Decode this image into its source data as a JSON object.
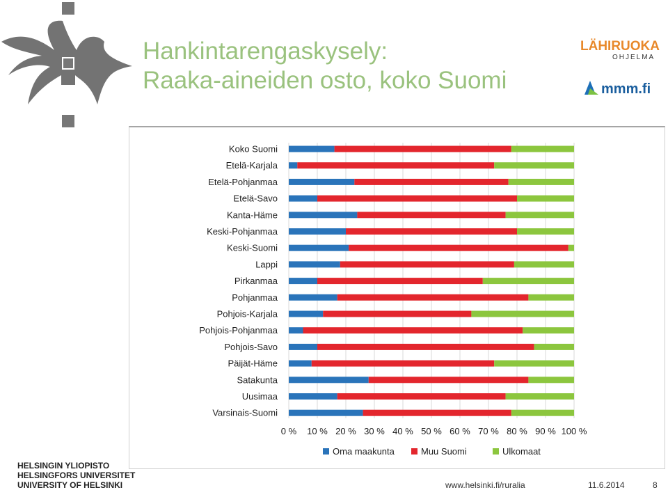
{
  "header": {
    "title_line1": "Hankintarengaskysely:",
    "title_line2": "Raaka-aineiden osto, koko Suomi"
  },
  "logos": {
    "lahiruoka_main": "LÄHIRUOKA",
    "lahiruoka_sub": "OHJELMA",
    "mmm": "mmm.fi",
    "university_line1": "HELSINGIN YLIOPISTO",
    "university_line2": "HELSINGFORS UNIVERSITET",
    "university_line3": "UNIVERSITY OF HELSINKI"
  },
  "footer": {
    "url": "www.helsinki.fi/ruralia",
    "date": "11.6.2014",
    "page": "8"
  },
  "colors": {
    "title": "#9ac27e",
    "oma": "#2a74ba",
    "muu": "#e3262d",
    "ulko": "#8cc63e"
  },
  "chart_data": {
    "type": "bar",
    "orientation": "horizontal",
    "stacked": "percent",
    "categories": [
      "Koko Suomi",
      "Etelä-Karjala",
      "Etelä-Pohjanmaa",
      "Etelä-Savo",
      "Kanta-Häme",
      "Keski-Pohjanmaa",
      "Keski-Suomi",
      "Lappi",
      "Pirkanmaa",
      "Pohjanmaa",
      "Pohjois-Karjala",
      "Pohjois-Pohjanmaa",
      "Pohjois-Savo",
      "Päijät-Häme",
      "Satakunta",
      "Uusimaa",
      "Varsinais-Suomi"
    ],
    "series": [
      {
        "name": "Oma maakunta",
        "color": "#2a74ba",
        "values": [
          16,
          3,
          23,
          10,
          24,
          20,
          21,
          18,
          10,
          17,
          12,
          5,
          10,
          8,
          28,
          17,
          26
        ]
      },
      {
        "name": "Muu Suomi",
        "color": "#e3262d",
        "values": [
          62,
          69,
          54,
          70,
          52,
          60,
          77,
          61,
          58,
          67,
          52,
          77,
          76,
          64,
          56,
          59,
          52
        ]
      },
      {
        "name": "Ulkomaat",
        "color": "#8cc63e",
        "values": [
          22,
          28,
          23,
          20,
          24,
          20,
          2,
          21,
          32,
          16,
          36,
          18,
          14,
          28,
          16,
          24,
          22
        ]
      }
    ],
    "x_ticks": [
      "0 %",
      "10 %",
      "20 %",
      "30 %",
      "40 %",
      "50 %",
      "60 %",
      "70 %",
      "80 %",
      "90 %",
      "100 %"
    ],
    "xlim": [
      0,
      100
    ],
    "grid": true,
    "legend": "bottom"
  }
}
